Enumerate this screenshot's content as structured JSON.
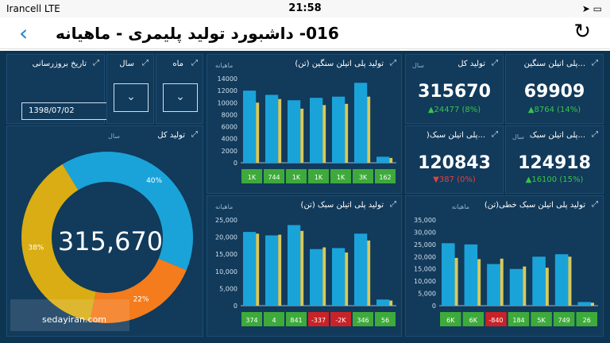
{
  "status": {
    "carrier": "Irancell",
    "network": "LTE",
    "time": "21:58"
  },
  "nav": {
    "title": "016- داشبورد تولید پلیمری - ماهیانه",
    "back_icon": "chevron-left-icon",
    "refresh_icon": "refresh-icon"
  },
  "filters": {
    "date_label": "تاریخ بروزرسانی",
    "date_value": "1398/07/02",
    "year_label": "سال",
    "month_label": "ماه"
  },
  "total": {
    "title": "تولید کل",
    "sub": "سال",
    "center": "315,670",
    "chart_data": {
      "type": "pie",
      "slices": [
        {
          "name": "",
          "value": 40,
          "label": "40%",
          "color": "#1aa3d9"
        },
        {
          "name": "",
          "value": 22,
          "label": "22%",
          "color": "#f47c1d"
        },
        {
          "name": "",
          "value": 38,
          "label": "38%",
          "color": "#d9ad13"
        }
      ]
    }
  },
  "kpis": [
    {
      "title": "...پلی اتیلن سنگین",
      "sub": "سال",
      "value": "69909",
      "change": "8764 (14%)",
      "dir": "up"
    },
    {
      "title": "تولید کل",
      "sub": "سال",
      "value": "315670",
      "change": "24477 (8%)",
      "dir": "up"
    },
    {
      "title": "...پلی اتیلن سبک",
      "sub": "سال",
      "value": "124918",
      "change": "16100 (15%)",
      "dir": "up"
    },
    {
      "title": "...پلی اتیلن سبک(",
      "sub": "سال",
      "value": "120843",
      "change": "387 (0%)",
      "dir": "down"
    }
  ],
  "heavy": {
    "title": "تولید پلی اتیلن سنگین (تن)",
    "sub": "ماهیانه",
    "chart_data": {
      "type": "bar",
      "ylim": [
        0,
        14000
      ],
      "yticks": [
        "14000",
        "12000",
        "10000",
        "8000",
        "6000",
        "4000",
        "2000",
        "0"
      ],
      "series": [
        {
          "name": "",
          "values": [
            12000,
            11300,
            10400,
            10800,
            11000,
            13300,
            1000
          ],
          "color": "#1aa3d9"
        },
        {
          "name": "",
          "values": [
            10000,
            10600,
            9000,
            9600,
            9800,
            11000,
            800
          ],
          "color": "#d9c95a"
        }
      ],
      "deltas": [
        "1K",
        "744",
        "1K",
        "1K",
        "1K",
        "3K",
        "162"
      ],
      "delta_neg": [
        false,
        false,
        false,
        false,
        false,
        false,
        false
      ]
    }
  },
  "light": {
    "title": "تولید پلی اتیلن سبک (تن)",
    "sub": "ماهیانه",
    "chart_data": {
      "type": "bar",
      "ylim": [
        0,
        25000
      ],
      "yticks": [
        "25,000",
        "20,000",
        "15,000",
        "10,000",
        "5,000",
        "0"
      ],
      "series": [
        {
          "name": "",
          "values": [
            21500,
            20500,
            23500,
            16500,
            16800,
            21000,
            1800
          ],
          "color": "#1aa3d9"
        },
        {
          "name": "",
          "values": [
            21000,
            20700,
            21800,
            17000,
            15500,
            19000,
            1500
          ],
          "color": "#d9c95a"
        }
      ],
      "deltas": [
        "374",
        "4",
        "841",
        "-337",
        "-2K",
        "346",
        "56"
      ],
      "delta_neg": [
        false,
        false,
        false,
        true,
        true,
        false,
        false
      ]
    }
  },
  "linear": {
    "title": "تولید پلی اتیلن سبک خطی(تن)",
    "sub": "ماهیانه",
    "chart_data": {
      "type": "bar",
      "ylim": [
        0,
        35000
      ],
      "yticks": [
        "35,000",
        "30,000",
        "25,000",
        "20,000",
        "15,000",
        "10,000",
        "5,000",
        "0"
      ],
      "series": [
        {
          "name": "",
          "values": [
            25500,
            25000,
            17000,
            15000,
            20000,
            21000,
            1500
          ],
          "color": "#1aa3d9"
        },
        {
          "name": "",
          "values": [
            19500,
            19000,
            19200,
            16000,
            15500,
            20000,
            1200
          ],
          "color": "#d9c95a"
        }
      ],
      "deltas": [
        "6K",
        "6K",
        "-840",
        "184",
        "5K",
        "749",
        "26"
      ],
      "delta_neg": [
        false,
        false,
        true,
        false,
        false,
        false,
        false
      ]
    }
  },
  "watermark": "sedayiran.com"
}
